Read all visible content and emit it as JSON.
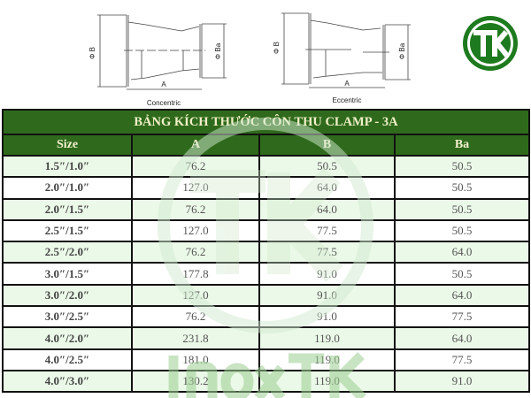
{
  "diagram": {
    "concentric_label": "Concentric",
    "eccentric_label": "Eccentric",
    "dim_a": "A",
    "dim_b": "Φ B",
    "dim_ba": "Φ Ba"
  },
  "logo": {
    "text": "TK",
    "color": "#1e7a1e"
  },
  "watermark": {
    "text": "InoxTK",
    "color": "#bfe0b8"
  },
  "table": {
    "title": "BẢNG KÍCH THƯỚC CÔN THU CLAMP - 3A",
    "headers": [
      "Size",
      "A",
      "B",
      "Ba"
    ],
    "rows": [
      [
        "1.5″/1.0″",
        "76.2",
        "50.5",
        "50.5"
      ],
      [
        "2.0″/1.0″",
        "127.0",
        "64.0",
        "50.5"
      ],
      [
        "2.0″/1.5″",
        "76.2",
        "64.0",
        "50.5"
      ],
      [
        "2.5″/1.5″",
        "127.0",
        "77.5",
        "50.5"
      ],
      [
        "2.5″/2.0″",
        "76.2",
        "77.5",
        "64.0"
      ],
      [
        "3.0″/1.5″",
        "177.8",
        "91.0",
        "50.5"
      ],
      [
        "3.0″/2.0″",
        "127.0",
        "91.0",
        "64.0"
      ],
      [
        "3.0″/2.5″",
        "76.2",
        "91.0",
        "77.5"
      ],
      [
        "4.0″/2.0″",
        "231.8",
        "119.0",
        "64.0"
      ],
      [
        "4.0″/2.5″",
        "181.0",
        "119.0",
        "77.5"
      ],
      [
        "4.0″/3.0″",
        "130.2",
        "119.0",
        "91.0"
      ]
    ],
    "header_color": "#2f6a1c",
    "alt_row_color": "#e8f8e4"
  }
}
